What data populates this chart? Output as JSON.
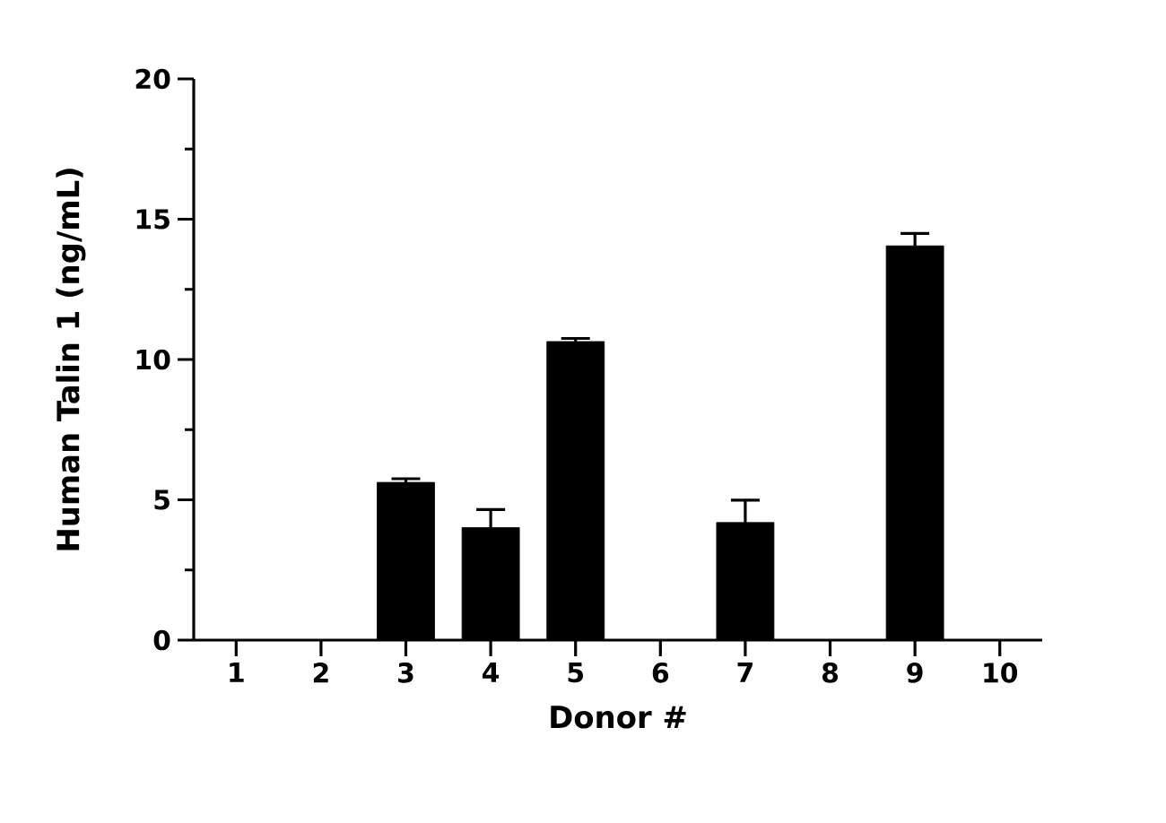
{
  "chart_data": {
    "type": "bar",
    "xlabel": "Donor #",
    "ylabel": "Human Talin 1 (ng/mL)",
    "categories": [
      "1",
      "2",
      "3",
      "4",
      "5",
      "6",
      "7",
      "8",
      "9",
      "10"
    ],
    "values": [
      0,
      0,
      5.62,
      4.01,
      10.64,
      0,
      4.19,
      0,
      14.05,
      0
    ],
    "errors": [
      null,
      null,
      0.13,
      0.64,
      0.11,
      null,
      0.8,
      null,
      0.44,
      null
    ],
    "color": "#000000",
    "ylim": [
      0,
      20
    ],
    "yticks": [
      0,
      {
        "value": 2.5,
        "label": null
      },
      5,
      {
        "value": 7.5,
        "label": null
      },
      10,
      {
        "value": 12.5,
        "label": null
      },
      15,
      {
        "value": 17.5,
        "label": null
      },
      20
    ],
    "grid": false
  }
}
